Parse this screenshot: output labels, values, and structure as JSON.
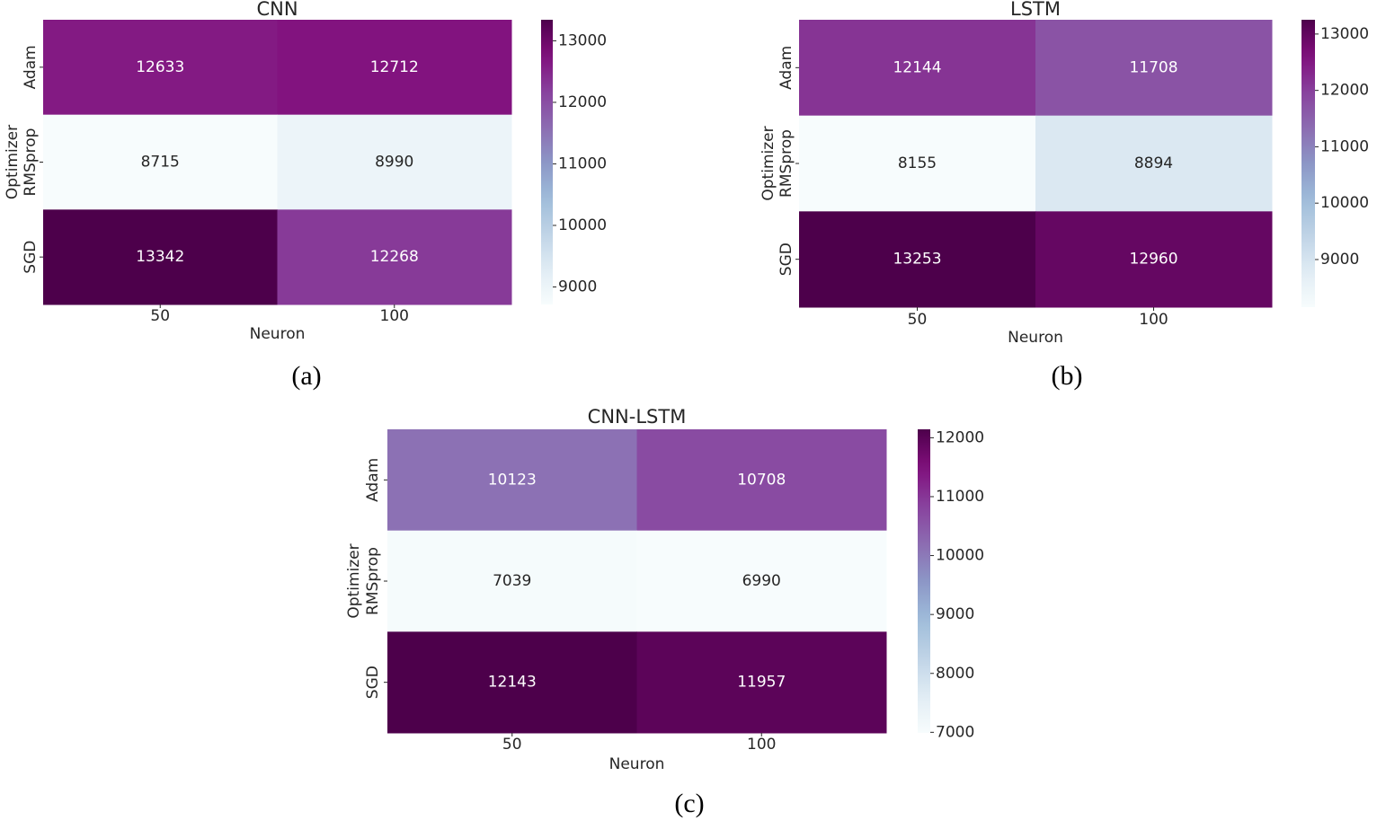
{
  "colors": {
    "text": "#262626",
    "background": "#ffffff",
    "scale": [
      "#f7fcfd",
      "#e0ecf4",
      "#bfd3e6",
      "#9ebcda",
      "#8c96c6",
      "#8c6bb1",
      "#88419d",
      "#810f7c",
      "#4d004b"
    ]
  },
  "chart_data": [
    {
      "type": "heatmap",
      "title": "CNN",
      "caption": "(a)",
      "xlabel": "Neuron",
      "ylabel": "Optimizer",
      "x": [
        "50",
        "100"
      ],
      "y": [
        "Adam",
        "RMSprop",
        "SGD"
      ],
      "values": [
        [
          12633,
          12712
        ],
        [
          8715,
          8990
        ],
        [
          13342,
          12268
        ]
      ],
      "value_labels": [
        [
          "12633",
          "12712"
        ],
        [
          "8715",
          "8990"
        ],
        [
          "13342",
          "12268"
        ]
      ],
      "vmin": 8715,
      "vmax": 13342,
      "colorbar_ticks": [
        9000,
        10000,
        11000,
        12000,
        13000
      ],
      "colorbar_tick_labels": [
        "9000",
        "10000",
        "11000",
        "12000",
        "13000"
      ]
    },
    {
      "type": "heatmap",
      "title": "LSTM",
      "caption": "(b)",
      "xlabel": "Neuron",
      "ylabel": "Optimizer",
      "x": [
        "50",
        "100"
      ],
      "y": [
        "Adam",
        "RMSprop",
        "SGD"
      ],
      "values": [
        [
          12144,
          11708
        ],
        [
          8155,
          8894
        ],
        [
          13253,
          12960
        ]
      ],
      "value_labels": [
        [
          "12144",
          "11708"
        ],
        [
          "8155",
          "8894"
        ],
        [
          "13253",
          "12960"
        ]
      ],
      "vmin": 8155,
      "vmax": 13253,
      "colorbar_ticks": [
        9000,
        10000,
        11000,
        12000,
        13000
      ],
      "colorbar_tick_labels": [
        "9000",
        "10000",
        "11000",
        "12000",
        "13000"
      ]
    },
    {
      "type": "heatmap",
      "title": "CNN-LSTM",
      "caption": "(c)",
      "xlabel": "Neuron",
      "ylabel": "Optimizer",
      "x": [
        "50",
        "100"
      ],
      "y": [
        "Adam",
        "RMSprop",
        "SGD"
      ],
      "values": [
        [
          10123,
          10708
        ],
        [
          7039,
          6990
        ],
        [
          12143,
          11957
        ]
      ],
      "value_labels": [
        [
          "10123",
          "10708"
        ],
        [
          "7039",
          "6990"
        ],
        [
          "12143",
          "11957"
        ]
      ],
      "vmin": 6990,
      "vmax": 12143,
      "colorbar_ticks": [
        7000,
        8000,
        9000,
        10000,
        11000,
        12000
      ],
      "colorbar_tick_labels": [
        "7000",
        "8000",
        "9000",
        "10000",
        "11000",
        "12000"
      ]
    }
  ]
}
